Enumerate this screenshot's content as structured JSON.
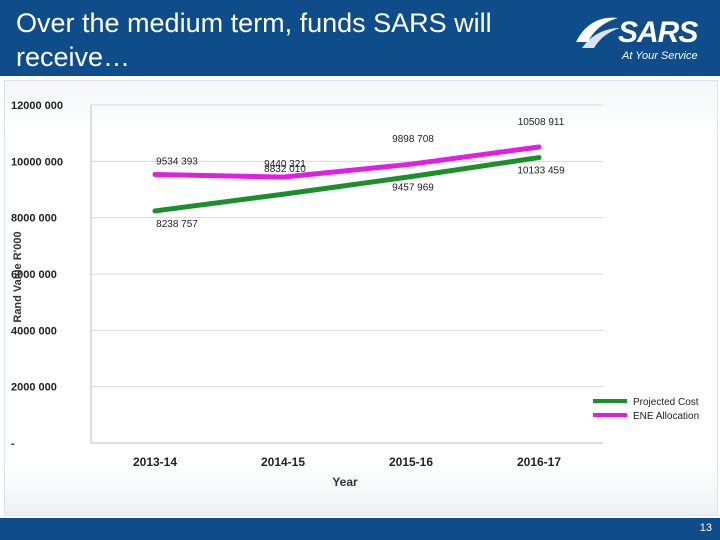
{
  "header": {
    "title": "Over the medium term, funds SARS will receive…"
  },
  "logo": {
    "name": "SARS",
    "tagline": "At Your Service"
  },
  "footer": {
    "page_number": "13"
  },
  "colors": {
    "header_bg": "#0f4c8a",
    "projected": "#1a8f2a",
    "ene": "#e020e0",
    "grid": "#d9d9d9"
  },
  "chart_data": {
    "type": "line",
    "categories": [
      "2013-14",
      "2014-15",
      "2015-16",
      "2016-17"
    ],
    "xlabel": "Year",
    "ylabel": "Rand Value R'000",
    "ylim": [
      0,
      12000000
    ],
    "yticks": [
      0,
      2000000,
      4000000,
      6000000,
      8000000,
      10000000,
      12000000
    ],
    "ytick_labels": [
      "-",
      "2000 000",
      "4000 000",
      "6000 000",
      "8000 000",
      "10000 000",
      "12000 000"
    ],
    "grid": true,
    "legend_position": "bottom-right",
    "series": [
      {
        "name": "Projected Cost",
        "values": [
          8238757,
          8832010,
          9457969,
          10133459
        ],
        "labels": [
          "8238 757",
          "8832 010",
          "9457 969",
          "10133 459"
        ]
      },
      {
        "name": "ENE Allocation",
        "values": [
          9534393,
          9440321,
          9898708,
          10508911
        ],
        "labels": [
          "9534 393",
          "9440 321",
          "9898 708",
          "10508 911"
        ]
      }
    ]
  }
}
